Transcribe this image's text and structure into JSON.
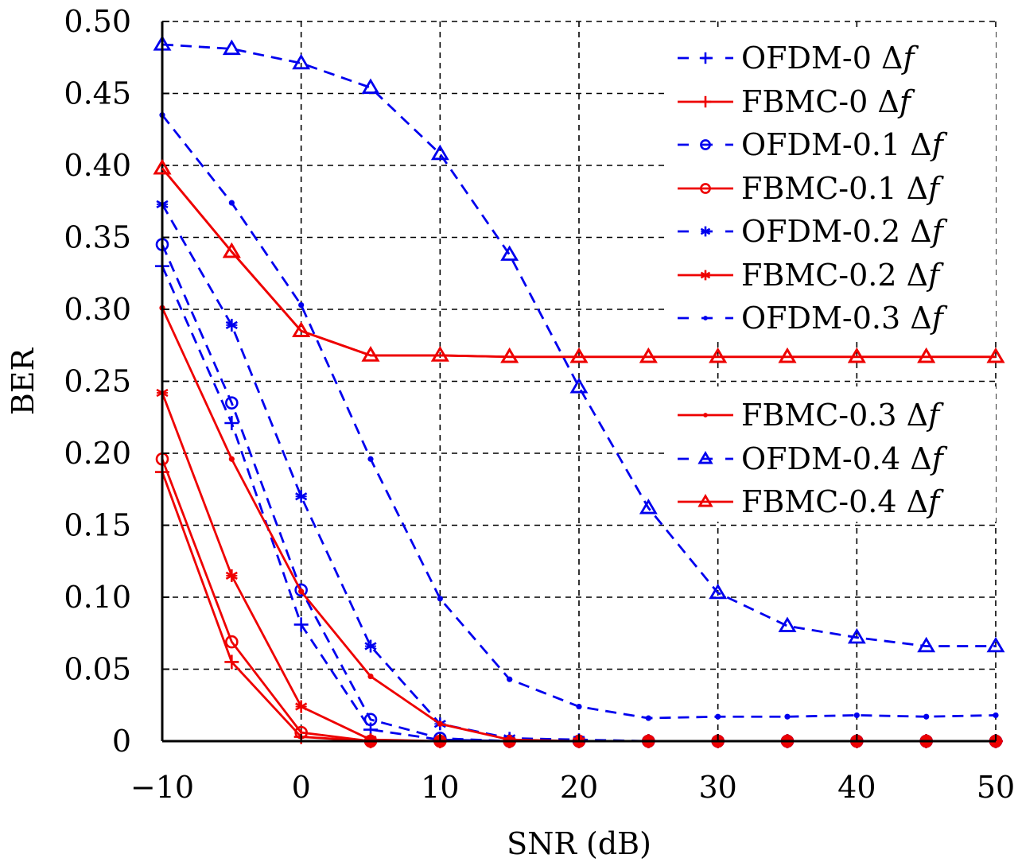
{
  "chart_data": {
    "type": "line",
    "title": "",
    "xlabel": "SNR (dB)",
    "ylabel": "BER",
    "xlim": [
      -10,
      50
    ],
    "ylim": [
      0,
      0.5
    ],
    "grid": true,
    "legend_position": "top-right",
    "x_ticks": [
      -10,
      0,
      10,
      20,
      30,
      40,
      50
    ],
    "x_tick_labels": [
      "−10",
      "0",
      "10",
      "20",
      "30",
      "40",
      "50"
    ],
    "y_ticks": [
      0,
      0.05,
      0.1,
      0.15,
      0.2,
      0.25,
      0.3,
      0.35,
      0.4,
      0.45,
      0.5
    ],
    "y_tick_labels": [
      "0",
      "0.05",
      "0.10",
      "0.15",
      "0.20",
      "0.25",
      "0.30",
      "0.35",
      "0.40",
      "0.45",
      "0.50"
    ],
    "x": [
      -10,
      -5,
      0,
      5,
      10,
      15,
      20,
      25,
      30,
      35,
      40,
      45,
      50
    ],
    "series": [
      {
        "name": "OFDM-0 Δf",
        "label_prefix": "OFDM-0 ",
        "color": "#0000ee",
        "line": "dashed",
        "marker": "plus",
        "values": [
          0.33,
          0.221,
          0.081,
          0.008,
          0.001,
          0.0,
          0.0,
          0.0,
          0.0,
          0.0,
          0.0,
          0.0,
          0.0
        ]
      },
      {
        "name": "FBMC-0 Δf",
        "label_prefix": "FBMC-0 ",
        "color": "#ee0000",
        "line": "solid",
        "marker": "plus",
        "values": [
          0.187,
          0.055,
          0.003,
          0.0,
          0.0,
          0.0,
          0.0,
          0.0,
          0.0,
          0.0,
          0.0,
          0.0,
          0.0
        ]
      },
      {
        "name": "OFDM-0.1 Δf",
        "label_prefix": "OFDM-0.1 ",
        "color": "#0000ee",
        "line": "dashed",
        "marker": "circle",
        "values": [
          0.345,
          0.235,
          0.105,
          0.015,
          0.002,
          0.0,
          0.0,
          0.0,
          0.0,
          0.0,
          0.0,
          0.0,
          0.0
        ]
      },
      {
        "name": "FBMC-0.1 Δf",
        "label_prefix": "FBMC-0.1 ",
        "color": "#ee0000",
        "line": "solid",
        "marker": "circle",
        "values": [
          0.196,
          0.069,
          0.006,
          0.0,
          0.0,
          0.0,
          0.0,
          0.0,
          0.0,
          0.0,
          0.0,
          0.0,
          0.0
        ]
      },
      {
        "name": "OFDM-0.2 Δf",
        "label_prefix": "OFDM-0.2 ",
        "color": "#0000ee",
        "line": "dashed",
        "marker": "asterisk",
        "values": [
          0.373,
          0.289,
          0.17,
          0.066,
          0.012,
          0.002,
          0.001,
          0.0,
          0.0,
          0.0,
          0.0,
          0.0,
          0.0
        ]
      },
      {
        "name": "FBMC-0.2 Δf",
        "label_prefix": "FBMC-0.2 ",
        "color": "#ee0000",
        "line": "solid",
        "marker": "asterisk",
        "values": [
          0.242,
          0.115,
          0.024,
          0.001,
          0.0,
          0.0,
          0.0,
          0.0,
          0.0,
          0.0,
          0.0,
          0.0,
          0.0
        ]
      },
      {
        "name": "OFDM-0.3 Δf",
        "label_prefix": "OFDM-0.3 ",
        "color": "#0000ee",
        "line": "dashed",
        "marker": "dot",
        "values": [
          0.435,
          0.374,
          0.303,
          0.196,
          0.099,
          0.043,
          0.024,
          0.016,
          0.017,
          0.017,
          0.018,
          0.017,
          0.018
        ]
      },
      {
        "name": "FBMC-0.3 Δf",
        "label_prefix": "FBMC-0.3 ",
        "color": "#ee0000",
        "line": "solid",
        "marker": "dot",
        "values": [
          0.301,
          0.196,
          0.104,
          0.045,
          0.012,
          0.001,
          0.0,
          0.0,
          0.0,
          0.0,
          0.0,
          0.0,
          0.0
        ]
      },
      {
        "name": "OFDM-0.4 Δf",
        "label_prefix": "OFDM-0.4 ",
        "color": "#0000ee",
        "line": "dashed",
        "marker": "triangle",
        "values": [
          0.484,
          0.481,
          0.471,
          0.454,
          0.408,
          0.338,
          0.246,
          0.162,
          0.103,
          0.08,
          0.072,
          0.066,
          0.066
        ]
      },
      {
        "name": "FBMC-0.4 Δf",
        "label_prefix": "FBMC-0.4 ",
        "color": "#ee0000",
        "line": "solid",
        "marker": "triangle",
        "values": [
          0.398,
          0.34,
          0.285,
          0.268,
          0.268,
          0.267,
          0.267,
          0.267,
          0.267,
          0.267,
          0.267,
          0.267,
          0.267
        ]
      }
    ],
    "legend_symbol": "Δ",
    "legend_symbol_f": "f"
  }
}
